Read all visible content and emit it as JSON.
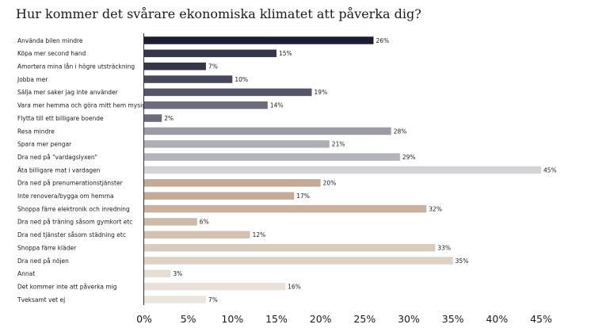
{
  "chart_data": {
    "type": "bar",
    "orientation": "horizontal",
    "title": "Hur kommer det svårare ekonomiska klimatet att påverka dig?",
    "categories": [
      "Använda bilen mindre",
      "Köpa mer second hand",
      "Amortera mina lån i högre utsträckning",
      "Jobba mer",
      "Sälja mer saker jag inte använder",
      "Vara mer hemma och göra mitt hem mysigare",
      "Flytta till ett billigare boende",
      "Resa mindre",
      "Spara mer pengar",
      "Dra ned på \"vardagslyxen\"",
      "Äta billigare mat i vardagen",
      "Dra ned på prenumerationstjänster",
      "Inte renovera/bygga om hemma",
      "Shoppa färre elektronik och inredning",
      "Dra ned på träning såsom gymkort etc",
      "Dra ned tjänster såsom städning etc",
      "Shoppa färre kläder",
      "Dra ned på nöjen",
      "Annat",
      "Det kommer inte att påverka mig",
      "Tveksamt vet ej"
    ],
    "values": [
      26,
      15,
      7,
      10,
      19,
      14,
      2,
      28,
      21,
      29,
      45,
      20,
      17,
      32,
      6,
      12,
      33,
      35,
      3,
      16,
      7
    ],
    "value_labels": [
      "26%",
      "15%",
      "7%",
      "10%",
      "19%",
      "14%",
      "2%",
      "28%",
      "21%",
      "29%",
      "45%",
      "20%",
      "17%",
      "32%",
      "6%",
      "12%",
      "33%",
      "35%",
      "3%",
      "16%",
      "7%"
    ],
    "colors": [
      "#1c1c35",
      "#36364a",
      "#36364a",
      "#48485c",
      "#55556a",
      "#6c6c7c",
      "#6c6c7c",
      "#9b9ba6",
      "#aeaeb6",
      "#b4b4bc",
      "#d4d3d8",
      "#c4aa95",
      "#c4aa95",
      "#c9b3a0",
      "#cdb9a7",
      "#d3c2b1",
      "#d9cbbd",
      "#dfd2c5",
      "#e6ddd3",
      "#e9e1d8",
      "#ece5dd"
    ],
    "x_ticks": [
      "0%",
      "5%",
      "10%",
      "15%",
      "20%",
      "25%",
      "30%",
      "35%",
      "40%",
      "45%"
    ],
    "xlim": [
      0,
      45
    ],
    "grid": false,
    "legend": "none"
  }
}
